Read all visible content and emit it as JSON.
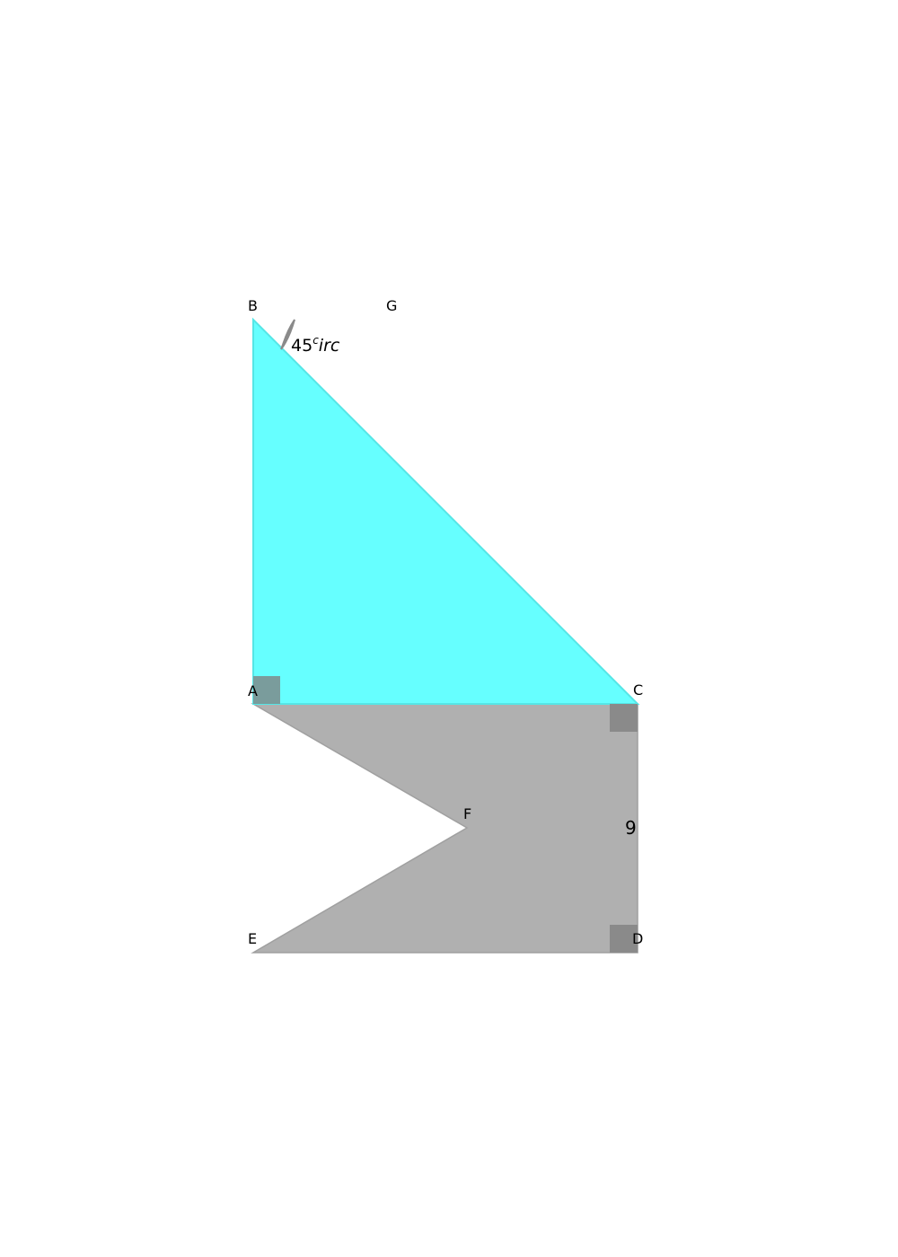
{
  "figure": {
    "points": {
      "A": "A",
      "B": "B",
      "C": "C",
      "D": "D",
      "E": "E",
      "F": "F",
      "G": "G"
    },
    "measurements": {
      "side_CD": "9",
      "angle_B_value": "45",
      "angle_B_sup": "c",
      "angle_B_suffix": "irc"
    },
    "colors": {
      "triangle_fill": "#66ffff",
      "triangle_stroke": "#55e6e6",
      "quad_fill": "#b0b0b0",
      "quad_stroke": "#a0a0a0",
      "right_angle_marker": "#808080",
      "right_angle_marker_on_cyan": "#7a9c9c",
      "angle_arc": "#8a8a8a"
    }
  }
}
